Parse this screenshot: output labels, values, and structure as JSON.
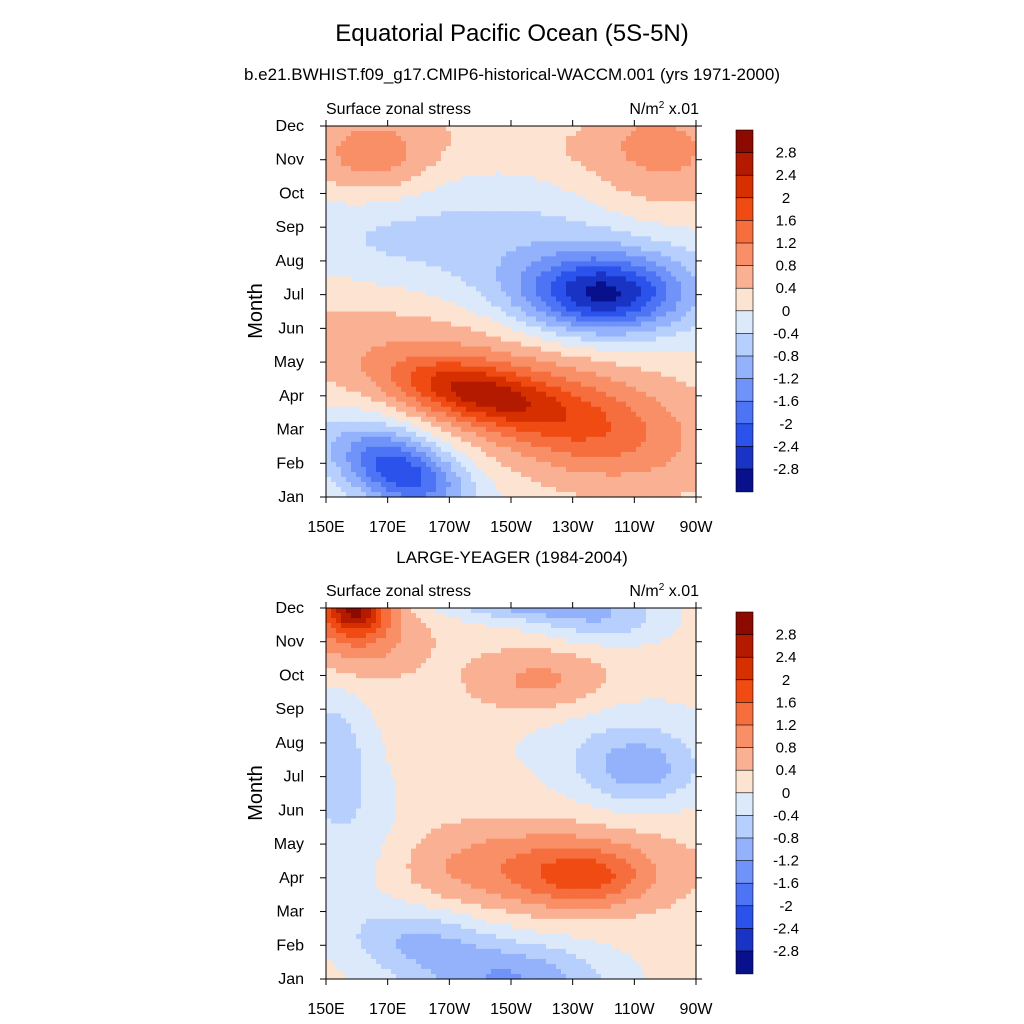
{
  "figure": {
    "title": "Equatorial Pacific Ocean (5S-5N)",
    "model_run": "b.e21.BWHIST.f09_g17.CMIP6-historical-WACCM.001 (yrs 1971-2000)",
    "obs_run": "LARGE-YEAGER (1984-2004)"
  },
  "chart_data": [
    {
      "type": "heatmap",
      "panel": "model",
      "left_label": "Surface zonal stress",
      "units_label": "N/m",
      "units_power": "2",
      "units_scale": " x.01",
      "xlabel": "",
      "ylabel": "Month",
      "x_ticks": [
        "150E",
        "170E",
        "170W",
        "150W",
        "130W",
        "110W",
        "90W"
      ],
      "x_range": [
        150,
        270
      ],
      "y_ticks": [
        "Jan",
        "Feb",
        "Mar",
        "Apr",
        "May",
        "Jun",
        "Jul",
        "Aug",
        "Sep",
        "Oct",
        "Nov",
        "Dec"
      ],
      "z_range": [
        -3.0,
        3.0
      ],
      "grid": false,
      "blobs": [
        {
          "lon": 175,
          "month": 1.7,
          "sx": 14,
          "sy": 0.8,
          "amp": -2.0,
          "tilt": -1.6
        },
        {
          "lon": 165,
          "month": 2.3,
          "sx": 22,
          "sy": 1.0,
          "amp": -0.6,
          "tilt": -1.2
        },
        {
          "lon": 198,
          "month": 4.1,
          "sx": 18,
          "sy": 0.6,
          "amp": 1.6,
          "tilt": -1.0
        },
        {
          "lon": 235,
          "month": 3.0,
          "sx": 22,
          "sy": 1.0,
          "amp": 0.9,
          "tilt": -0.9
        },
        {
          "lon": 205,
          "month": 4.6,
          "sx": 45,
          "sy": 1.6,
          "amp": 0.9,
          "tilt": -1.2
        },
        {
          "lon": 240,
          "month": 7.0,
          "sx": 18,
          "sy": 0.8,
          "amp": -2.4,
          "tilt": 0.0
        },
        {
          "lon": 230,
          "month": 7.8,
          "sx": 38,
          "sy": 1.8,
          "amp": -0.9,
          "tilt": 0.0
        },
        {
          "lon": 165,
          "month": 8.8,
          "sx": 25,
          "sy": 1.2,
          "amp": -0.5,
          "tilt": 0.0
        },
        {
          "lon": 165,
          "month": 11.0,
          "sx": 14,
          "sy": 0.9,
          "amp": 0.9,
          "tilt": 0.0
        },
        {
          "lon": 258,
          "month": 10.8,
          "sx": 20,
          "sy": 1.5,
          "amp": 0.8,
          "tilt": 0.0
        },
        {
          "lon": 210,
          "month": 11.7,
          "sx": 55,
          "sy": 0.8,
          "amp": 0.2,
          "tilt": 0.0
        },
        {
          "lon": 220,
          "month": 12.3,
          "sx": 12,
          "sy": 0.4,
          "amp": -0.4,
          "tilt": 0.0
        }
      ],
      "base_value": 0.15
    },
    {
      "type": "heatmap",
      "panel": "observations",
      "left_label": "Surface zonal stress",
      "units_label": "N/m",
      "units_power": "2",
      "units_scale": " x.01",
      "xlabel": "",
      "ylabel": "Month",
      "x_ticks": [
        "150E",
        "170E",
        "170W",
        "150W",
        "130W",
        "110W",
        "90W"
      ],
      "x_range": [
        150,
        270
      ],
      "y_ticks": [
        "Jan",
        "Feb",
        "Mar",
        "Apr",
        "May",
        "Jun",
        "Jul",
        "Aug",
        "Sep",
        "Oct",
        "Nov",
        "Dec"
      ],
      "z_range": [
        -3.0,
        3.0
      ],
      "grid": false,
      "blobs": [
        {
          "lon": 159,
          "month": 12.0,
          "sx": 7,
          "sy": 0.5,
          "amp": 2.0,
          "tilt": 0.0
        },
        {
          "lon": 160,
          "month": 11.3,
          "sx": 14,
          "sy": 0.9,
          "amp": 1.0,
          "tilt": 0.0
        },
        {
          "lon": 235,
          "month": 4.0,
          "sx": 13,
          "sy": 0.6,
          "amp": 0.9,
          "tilt": 0.0
        },
        {
          "lon": 218,
          "month": 4.3,
          "sx": 30,
          "sy": 0.9,
          "amp": 1.0,
          "tilt": 0.0
        },
        {
          "lon": 220,
          "month": 9.8,
          "sx": 16,
          "sy": 0.7,
          "amp": 0.8,
          "tilt": 0.0
        },
        {
          "lon": 215,
          "month": 12.2,
          "sx": 20,
          "sy": 0.4,
          "amp": -1.2,
          "tilt": 0.0
        },
        {
          "lon": 240,
          "month": 11.6,
          "sx": 15,
          "sy": 0.5,
          "amp": -0.8,
          "tilt": 0.0
        },
        {
          "lon": 210,
          "month": 1.0,
          "sx": 22,
          "sy": 0.8,
          "amp": -1.4,
          "tilt": 0.0
        },
        {
          "lon": 180,
          "month": 2.2,
          "sx": 16,
          "sy": 0.7,
          "amp": -0.9,
          "tilt": 0.0
        },
        {
          "lon": 252,
          "month": 7.2,
          "sx": 14,
          "sy": 0.8,
          "amp": -1.0,
          "tilt": 0.0
        },
        {
          "lon": 152,
          "month": 7.8,
          "sx": 8,
          "sy": 1.4,
          "amp": -0.8,
          "tilt": 0.0
        },
        {
          "lon": 160,
          "month": 5.0,
          "sx": 12,
          "sy": 1.8,
          "amp": -0.5,
          "tilt": 0.0
        },
        {
          "lon": 240,
          "month": 8.2,
          "sx": 25,
          "sy": 1.2,
          "amp": -0.4,
          "tilt": 0.0
        }
      ],
      "base_value": 0.2
    }
  ],
  "colorbar": {
    "tick_labels": [
      "2.8",
      "2.4",
      "2",
      "1.6",
      "1.2",
      "0.8",
      "0.4",
      "0",
      "-0.4",
      "-0.8",
      "-1.2",
      "-1.6",
      "-2",
      "-2.4",
      "-2.8"
    ],
    "levels": [
      3.0,
      2.8,
      2.4,
      2.0,
      1.6,
      1.2,
      0.8,
      0.4,
      0.0,
      -0.4,
      -0.8,
      -1.2,
      -1.6,
      -2.0,
      -2.4,
      -2.8,
      -3.0
    ],
    "colors": [
      "#8c0a00",
      "#b31a00",
      "#d63000",
      "#ef4b12",
      "#f66e3d",
      "#f88f66",
      "#fab193",
      "#fde3d1",
      "#dbe9fb",
      "#b6cffc",
      "#94b2fb",
      "#6f93f9",
      "#4d74f5",
      "#2b52ea",
      "#1934c4",
      "#08108c"
    ]
  }
}
